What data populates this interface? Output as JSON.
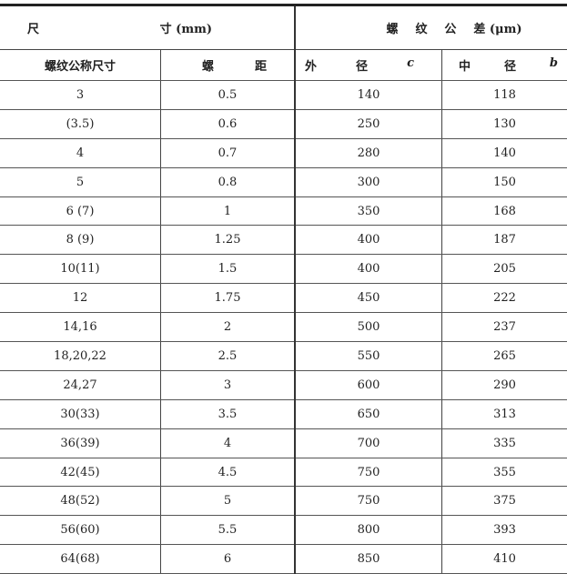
{
  "header": {
    "group1_left": "尺",
    "group1_right": "寸 (mm)",
    "group2": [
      "螺",
      "纹",
      "公",
      "差 (μm)"
    ],
    "col1": "螺纹公称尺寸",
    "col2": [
      "螺",
      "距"
    ],
    "col3": [
      "外",
      "径",
      "c"
    ],
    "col4": [
      "中",
      "径",
      "b"
    ]
  },
  "rows": [
    [
      "3",
      "0.5",
      "140",
      "118"
    ],
    [
      "(3.5)",
      "0.6",
      "250",
      "130"
    ],
    [
      "4",
      "0.7",
      "280",
      "140"
    ],
    [
      "5",
      "0.8",
      "300",
      "150"
    ],
    [
      "6 (7)",
      "1",
      "350",
      "168"
    ],
    [
      "8 (9)",
      "1.25",
      "400",
      "187"
    ],
    [
      "10(11)",
      "1.5",
      "400",
      "205"
    ],
    [
      "12",
      "1.75",
      "450",
      "222"
    ],
    [
      "14,16",
      "2",
      "500",
      "237"
    ],
    [
      "18,20,22",
      "2.5",
      "550",
      "265"
    ],
    [
      "24,27",
      "3",
      "600",
      "290"
    ],
    [
      "30(33)",
      "3.5",
      "650",
      "313"
    ],
    [
      "36(39)",
      "4",
      "700",
      "335"
    ],
    [
      "42(45)",
      "4.5",
      "750",
      "355"
    ],
    [
      "48(52)",
      "5",
      "750",
      "375"
    ],
    [
      "56(60)",
      "5.5",
      "800",
      "393"
    ],
    [
      "64(68)",
      "6",
      "850",
      "410"
    ]
  ]
}
